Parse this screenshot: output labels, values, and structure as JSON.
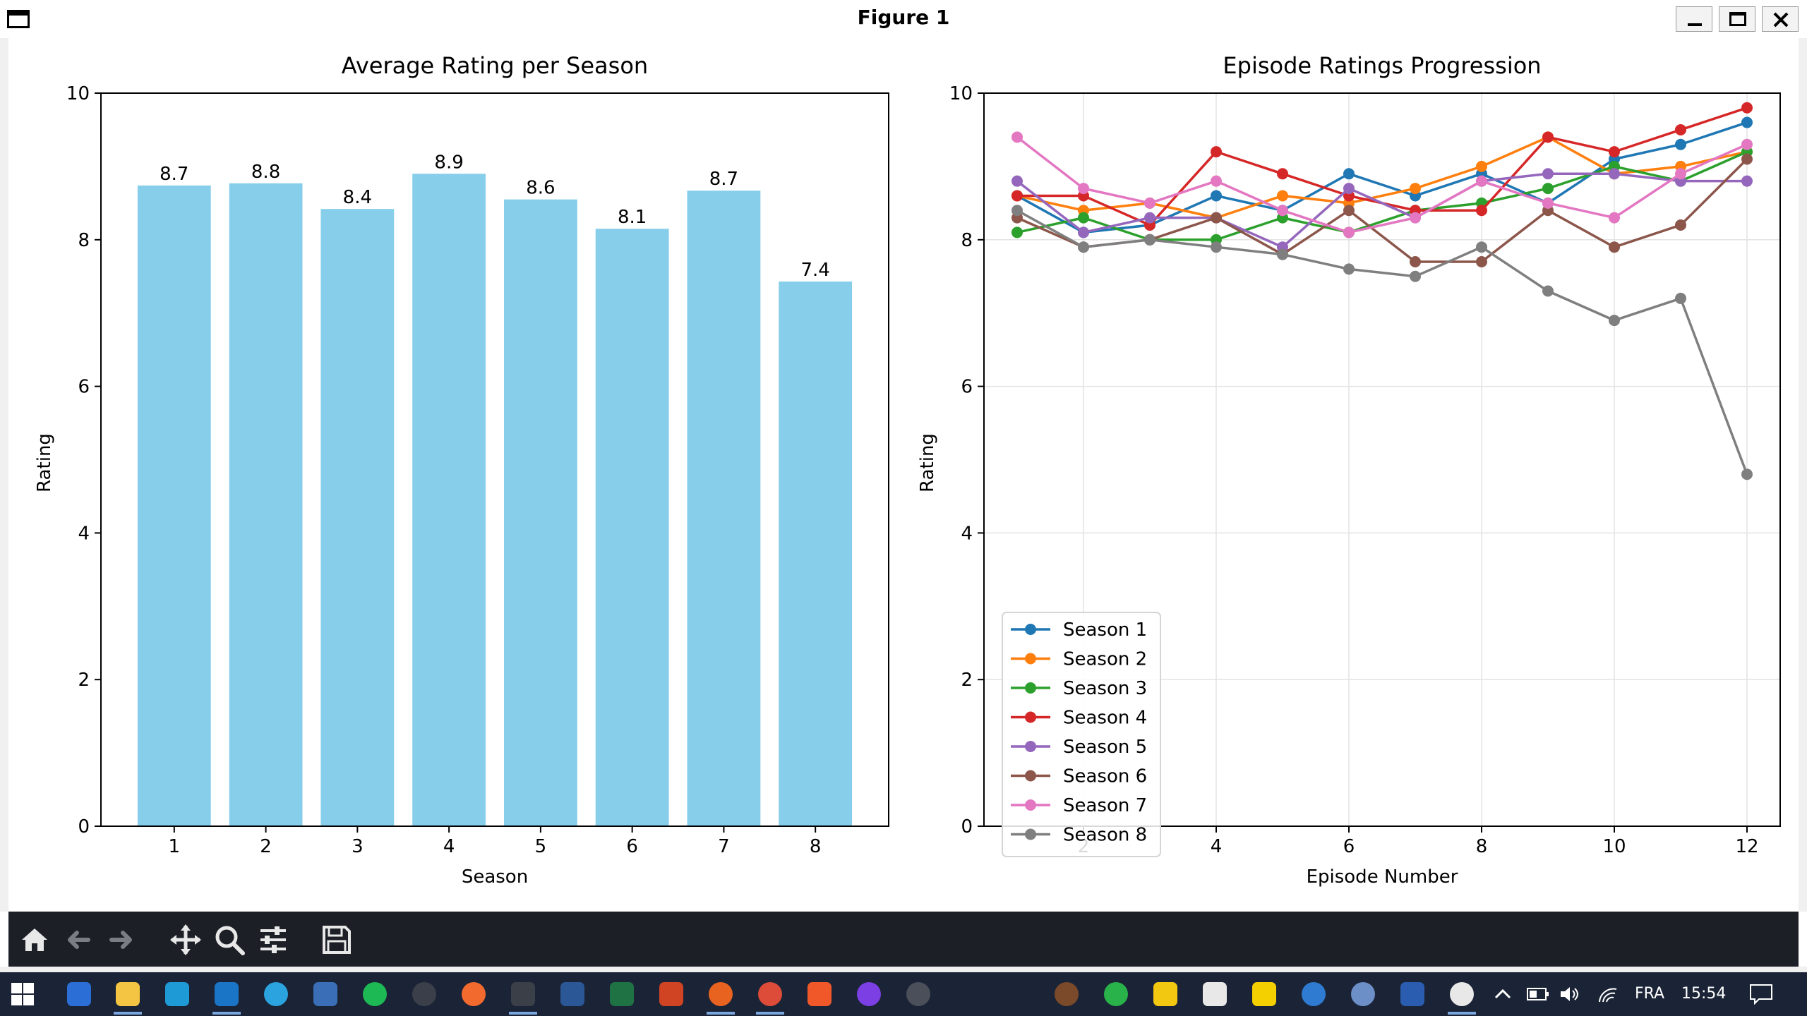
{
  "window": {
    "title": "Figure 1"
  },
  "chart_data": [
    {
      "type": "bar",
      "title": "Average Rating per Season",
      "xlabel": "Season",
      "ylabel": "Rating",
      "categories": [
        "1",
        "2",
        "3",
        "4",
        "5",
        "6",
        "7",
        "8"
      ],
      "values": [
        8.74,
        8.77,
        8.42,
        8.9,
        8.55,
        8.15,
        8.67,
        7.43
      ],
      "data_labels": [
        "8.7",
        "8.8",
        "8.4",
        "8.9",
        "8.6",
        "8.1",
        "8.7",
        "7.4"
      ],
      "ylim": [
        0,
        10
      ],
      "yticks": [
        0,
        2,
        4,
        6,
        8,
        10
      ],
      "bar_color": "#87ceeb",
      "grid": false
    },
    {
      "type": "line",
      "title": "Episode Ratings Progression",
      "xlabel": "Episode Number",
      "ylabel": "Rating",
      "x": [
        1,
        2,
        3,
        4,
        5,
        6,
        7,
        8,
        9,
        10,
        11,
        12
      ],
      "xlim": [
        0.5,
        12.5
      ],
      "xticks": [
        2,
        4,
        6,
        8,
        10,
        12
      ],
      "ylim": [
        0,
        10
      ],
      "yticks": [
        0,
        2,
        4,
        6,
        8,
        10
      ],
      "grid": true,
      "legend_position": "lower-left",
      "series": [
        {
          "name": "Season 1",
          "color": "#1f77b4",
          "values": [
            8.6,
            8.1,
            8.2,
            8.6,
            8.4,
            8.9,
            8.6,
            8.9,
            8.5,
            9.1,
            9.3,
            9.6
          ]
        },
        {
          "name": "Season 2",
          "color": "#ff7f0e",
          "values": [
            8.6,
            8.4,
            8.5,
            8.3,
            8.6,
            8.5,
            8.7,
            9.0,
            9.4,
            8.9,
            9.0,
            9.2
          ]
        },
        {
          "name": "Season 3",
          "color": "#2ca02c",
          "values": [
            8.1,
            8.3,
            8.0,
            8.0,
            8.3,
            8.1,
            8.4,
            8.5,
            8.7,
            9.0,
            8.8,
            9.2
          ]
        },
        {
          "name": "Season 4",
          "color": "#d62728",
          "values": [
            8.6,
            8.6,
            8.2,
            9.2,
            8.9,
            8.6,
            8.4,
            8.4,
            9.4,
            9.2,
            9.5,
            9.8
          ]
        },
        {
          "name": "Season 5",
          "color": "#9467bd",
          "values": [
            8.8,
            8.1,
            8.3,
            8.3,
            7.9,
            8.7,
            8.3,
            8.8,
            8.9,
            8.9,
            8.8,
            8.8
          ]
        },
        {
          "name": "Season 6",
          "color": "#8c564b",
          "values": [
            8.3,
            7.9,
            8.0,
            8.3,
            7.8,
            8.4,
            7.7,
            7.7,
            8.4,
            7.9,
            8.2,
            9.1
          ]
        },
        {
          "name": "Season 7",
          "color": "#e377c2",
          "values": [
            9.4,
            8.7,
            8.5,
            8.8,
            8.4,
            8.1,
            8.3,
            8.8,
            8.5,
            8.3,
            8.9,
            9.3
          ]
        },
        {
          "name": "Season 8",
          "color": "#7f7f7f",
          "values": [
            8.4,
            7.9,
            8.0,
            7.9,
            7.8,
            7.6,
            7.5,
            7.9,
            7.3,
            6.9,
            7.2,
            4.8
          ]
        }
      ]
    }
  ],
  "toolbar": {
    "buttons": [
      {
        "name": "home-button",
        "icon": "home-icon"
      },
      {
        "name": "back-button",
        "icon": "arrow-left-icon"
      },
      {
        "name": "forward-button",
        "icon": "arrow-right-icon"
      },
      {
        "name": "pan-button",
        "icon": "move-icon"
      },
      {
        "name": "zoom-button",
        "icon": "zoom-icon"
      },
      {
        "name": "configure-subplots-button",
        "icon": "sliders-icon"
      },
      {
        "name": "save-button",
        "icon": "floppy-icon"
      }
    ]
  },
  "taskbar": {
    "language": "FRA",
    "clock": "15:54"
  }
}
